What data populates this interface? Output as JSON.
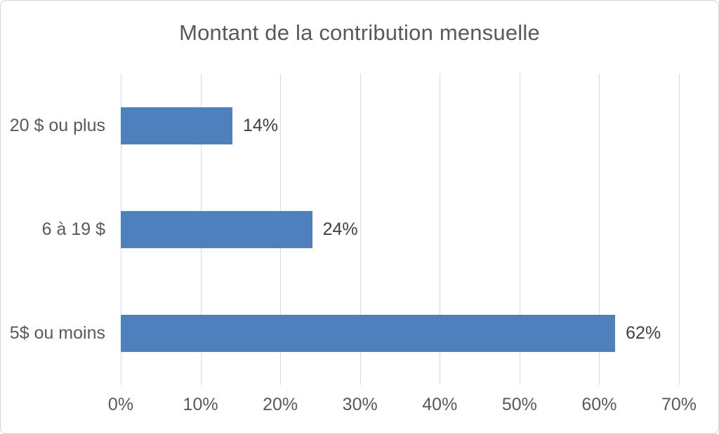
{
  "chart_data": {
    "type": "bar",
    "orientation": "horizontal",
    "title": "Montant de la contribution mensuelle",
    "categories": [
      "20 $ ou plus",
      "6 à 19 $",
      "5$ ou moins"
    ],
    "values": [
      14,
      24,
      62
    ],
    "data_labels": [
      "14%",
      "24%",
      "62%"
    ],
    "x_ticks": [
      "0%",
      "10%",
      "20%",
      "30%",
      "40%",
      "50%",
      "60%",
      "70%"
    ],
    "x_tick_values": [
      0,
      10,
      20,
      30,
      40,
      50,
      60,
      70
    ],
    "xlim": [
      0,
      70
    ],
    "xlabel": "",
    "ylabel": "",
    "grid": "vertical",
    "legend": "none",
    "category_order": "top-to-bottom",
    "colors": {
      "bar": "#4E80BD",
      "grid": "#D9D9D9",
      "title": "#595959",
      "axis_text": "#595959",
      "data_label": "#404040",
      "border": "#D6D6D6",
      "background": "#FFFFFF"
    }
  }
}
